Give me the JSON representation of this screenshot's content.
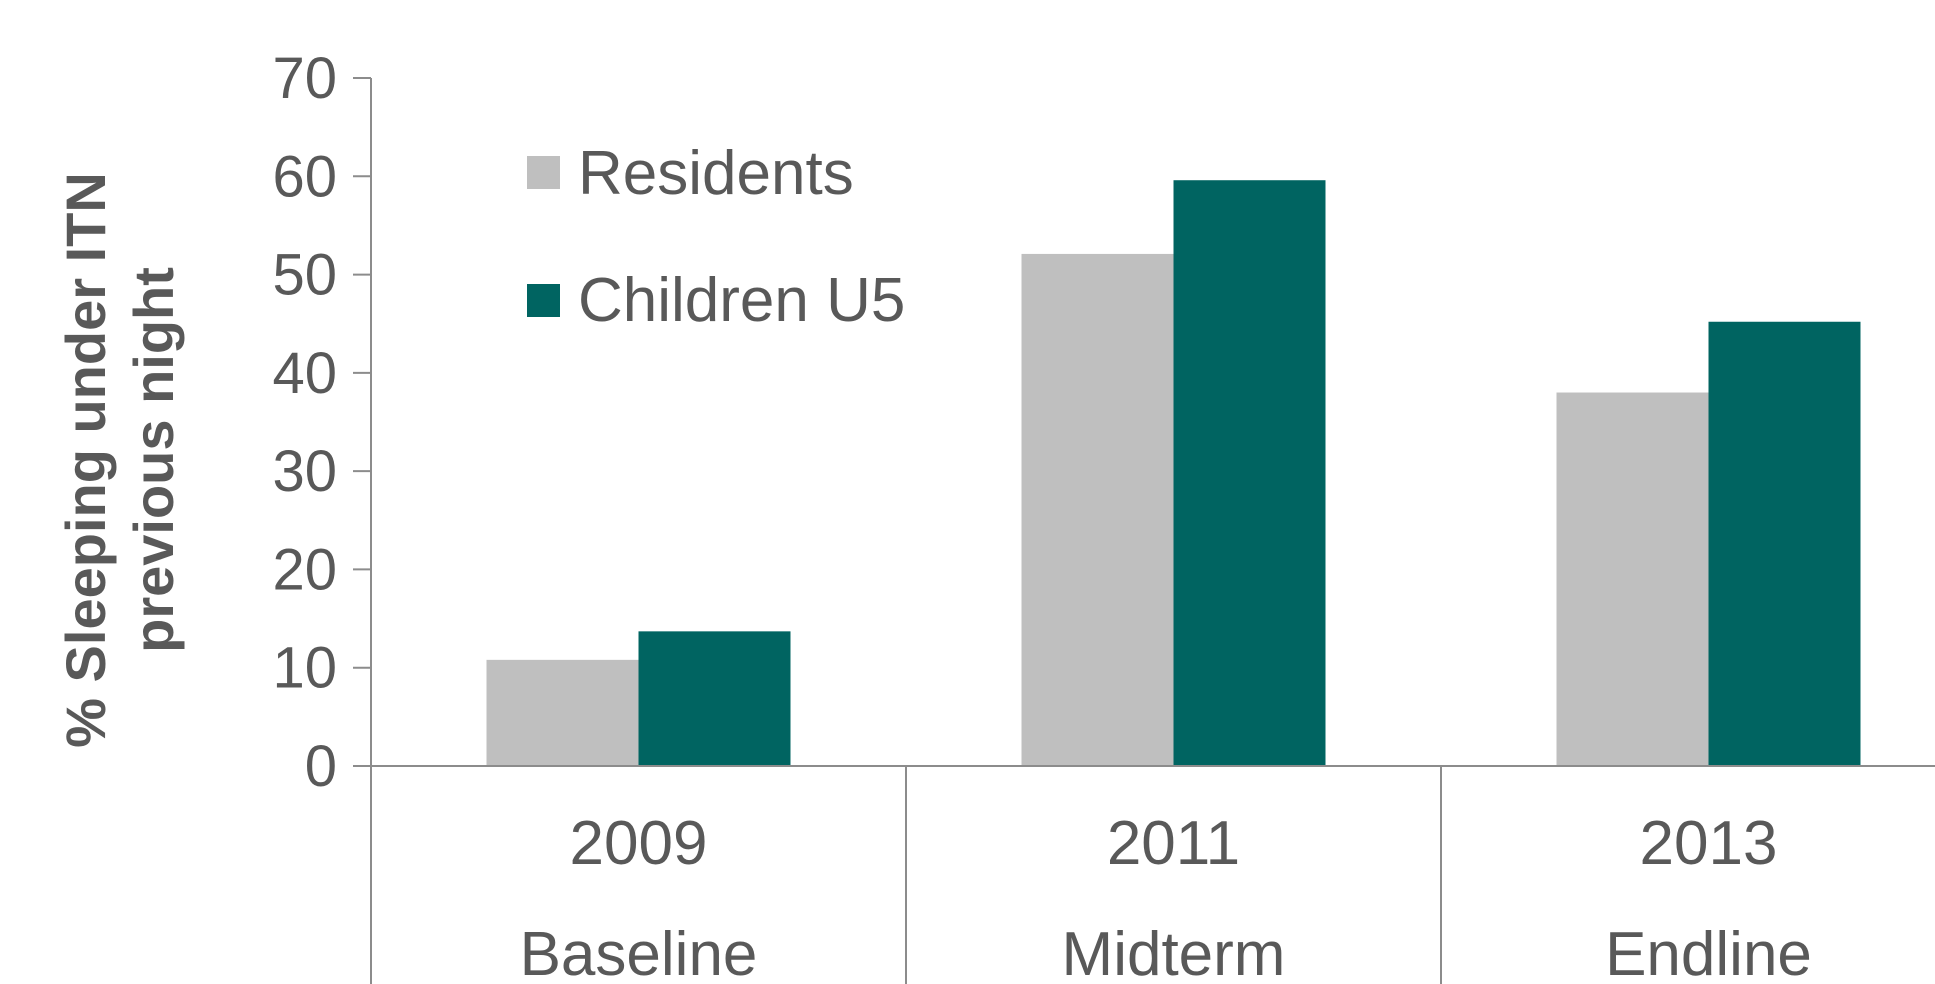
{
  "chart_data": {
    "type": "bar",
    "ylabel_lines": [
      "% Sleeping under ITN",
      "previous night"
    ],
    "ylim": [
      0,
      70
    ],
    "yticks": [
      "0",
      "10",
      "20",
      "30",
      "40",
      "50",
      "60",
      "70"
    ],
    "categories": [
      "2009",
      "2011",
      "2013"
    ],
    "sublabels": [
      "Baseline",
      "Midterm",
      "Endline"
    ],
    "series": [
      {
        "name": "Residents",
        "color": "#bfbfbf",
        "values": [
          10.8,
          52.1,
          38.0
        ]
      },
      {
        "name": "Children U5",
        "color": "#006461",
        "values": [
          13.7,
          59.6,
          45.2
        ]
      }
    ],
    "grid": false,
    "legend_position": "top-left"
  }
}
